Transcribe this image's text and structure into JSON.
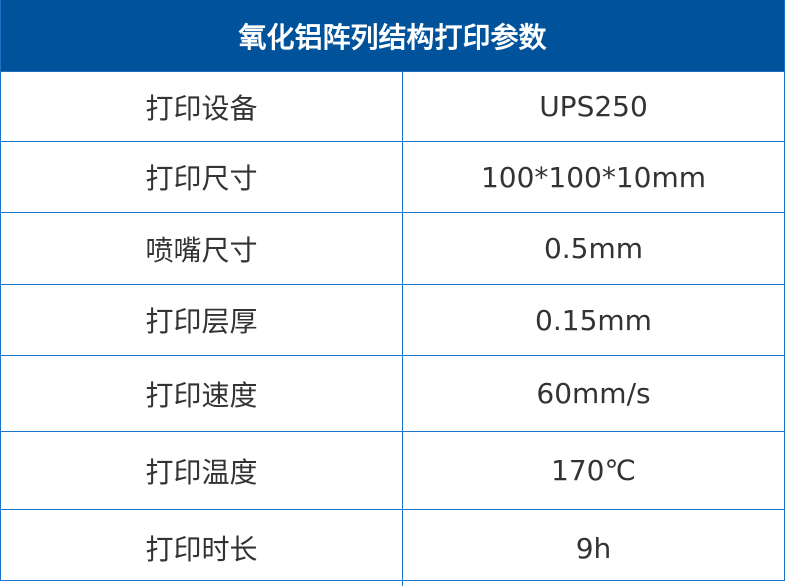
{
  "title": "氧化铝阵列结构打印参数",
  "rows": [
    {
      "label": "打印设备",
      "value": "UPS250"
    },
    {
      "label": "打印尺寸",
      "value": "100*100*10mm"
    },
    {
      "label": "喷嘴尺寸",
      "value": "0.5mm"
    },
    {
      "label": "打印层厚",
      "value": "0.15mm"
    },
    {
      "label": "打印速度",
      "value": "60mm/s"
    },
    {
      "label": "打印温度",
      "value": "170℃"
    },
    {
      "label": "打印时长",
      "value": "9h"
    }
  ],
  "colors": {
    "header_bg": "#00529b",
    "border": "#1a73c4",
    "text": "#333333"
  }
}
